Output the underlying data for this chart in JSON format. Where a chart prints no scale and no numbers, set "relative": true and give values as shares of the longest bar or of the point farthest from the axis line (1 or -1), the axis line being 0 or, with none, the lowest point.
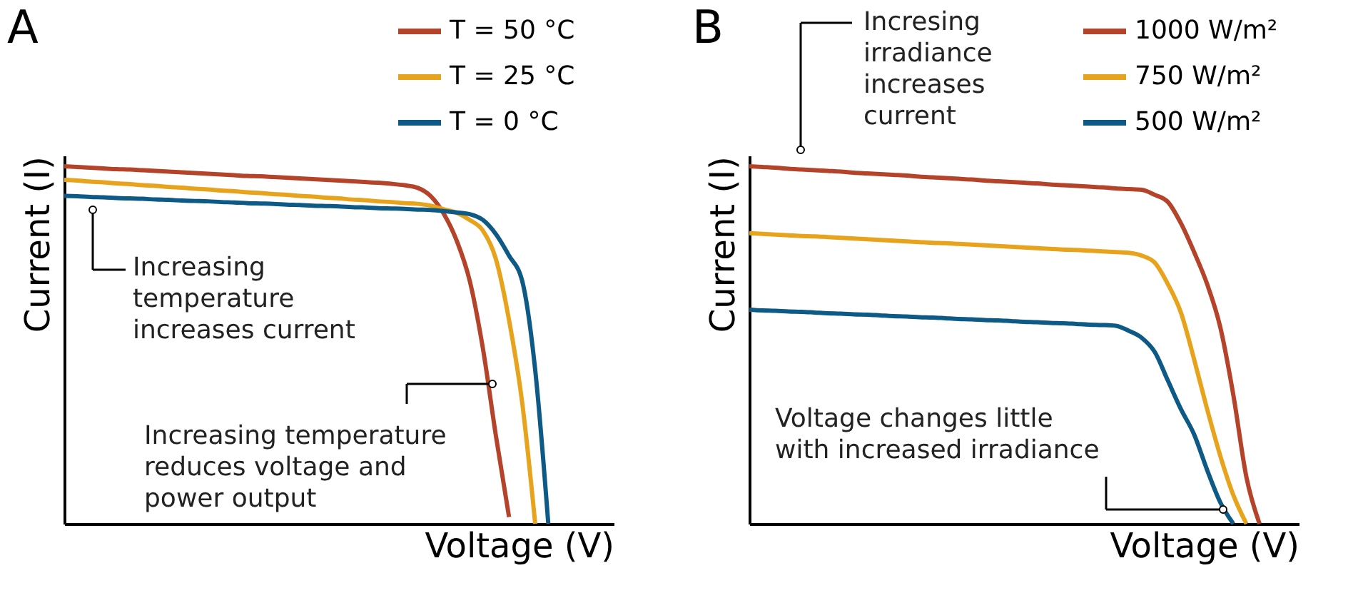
{
  "chart_data": [
    {
      "type": "line",
      "title": "A",
      "xlabel": "Voltage (V)",
      "ylabel": "Current (I)",
      "relative": true,
      "legend": "top right",
      "categories": [
        null,
        null,
        null,
        null,
        null,
        null,
        null,
        null,
        null,
        null,
        null,
        null,
        null,
        null,
        null,
        null,
        null,
        null,
        null,
        null,
        null,
        null,
        null,
        null,
        null,
        null,
        null,
        null,
        null,
        null,
        null,
        null,
        null,
        null,
        null,
        null,
        null,
        null,
        null,
        null,
        null,
        null,
        null
      ],
      "series": [
        {
          "name": "T = 50 °C",
          "color": "#b5432a",
          "values": [
            1.0,
            0.998,
            0.996,
            0.994,
            0.992,
            0.991,
            0.989,
            0.987,
            0.985,
            0.983,
            0.981,
            0.979,
            0.977,
            0.975,
            0.973,
            0.972,
            0.97,
            0.968,
            0.966,
            0.964,
            0.962,
            0.96,
            0.958,
            0.956,
            0.954,
            0.951,
            0.947,
            0.94,
            0.917,
            0.868,
            0.792,
            0.679,
            0.491,
            0.245,
            0.019,
            null,
            null,
            null,
            null,
            null,
            null,
            null,
            null
          ]
        },
        {
          "name": "T = 25 °C",
          "color": "#e8a31c",
          "values": [
            0.962,
            0.96,
            0.957,
            0.955,
            0.952,
            0.95,
            0.947,
            0.945,
            0.942,
            0.94,
            0.937,
            0.935,
            0.932,
            0.93,
            0.927,
            0.925,
            0.922,
            0.92,
            0.917,
            0.915,
            0.912,
            0.91,
            0.907,
            0.905,
            0.902,
            0.9,
            0.897,
            0.895,
            0.89,
            0.88,
            0.87,
            0.85,
            0.82,
            0.74,
            0.57,
            0.34,
            0.0,
            null,
            null,
            null,
            null,
            null,
            null
          ]
        },
        {
          "name": "T = 0 °C",
          "color": "#0e5a86",
          "values": [
            0.917,
            0.916,
            0.914,
            0.913,
            0.911,
            0.91,
            0.909,
            0.907,
            0.906,
            0.904,
            0.903,
            0.902,
            0.9,
            0.899,
            0.897,
            0.896,
            0.895,
            0.893,
            0.892,
            0.89,
            0.889,
            0.888,
            0.886,
            0.885,
            0.883,
            0.882,
            0.881,
            0.879,
            0.878,
            0.875,
            0.871,
            0.866,
            0.85,
            0.81,
            0.75,
            0.68,
            0.43,
            0.0,
            null,
            null,
            null,
            null,
            null
          ]
        }
      ],
      "annotations": [
        "Increasing\ntemperature\nincreases current",
        "Increasing temperature\nreduces voltage and\npower output"
      ]
    },
    {
      "type": "line",
      "title": "B",
      "xlabel": "Voltage (V)",
      "ylabel": "Current (I)",
      "relative": true,
      "legend": "top right",
      "categories": [
        null,
        null,
        null,
        null,
        null,
        null,
        null,
        null,
        null,
        null,
        null,
        null,
        null,
        null,
        null,
        null,
        null,
        null,
        null,
        null,
        null,
        null,
        null,
        null,
        null,
        null,
        null,
        null,
        null,
        null,
        null,
        null,
        null,
        null,
        null,
        null,
        null,
        null,
        null,
        null,
        null,
        null,
        null
      ],
      "series": [
        {
          "name": "1000 W/m²",
          "color": "#b5432a",
          "values": [
            1.0,
            0.998,
            0.996,
            0.993,
            0.991,
            0.989,
            0.987,
            0.985,
            0.982,
            0.98,
            0.978,
            0.976,
            0.974,
            0.971,
            0.969,
            0.967,
            0.965,
            0.963,
            0.96,
            0.958,
            0.956,
            0.954,
            0.952,
            0.949,
            0.947,
            0.945,
            0.943,
            0.941,
            0.938,
            0.936,
            0.934,
            0.92,
            0.9,
            0.84,
            0.76,
            0.67,
            0.55,
            0.36,
            0.13,
            0.0,
            null,
            null,
            null
          ]
        },
        {
          "name": "750 W/m²",
          "color": "#e8a31c",
          "values": [
            0.813,
            0.811,
            0.809,
            0.807,
            0.805,
            0.804,
            0.802,
            0.8,
            0.798,
            0.796,
            0.794,
            0.792,
            0.79,
            0.788,
            0.786,
            0.785,
            0.783,
            0.781,
            0.779,
            0.777,
            0.775,
            0.773,
            0.771,
            0.769,
            0.767,
            0.766,
            0.764,
            0.762,
            0.76,
            0.758,
            0.75,
            0.73,
            0.67,
            0.59,
            0.46,
            0.32,
            0.19,
            0.08,
            0.0,
            null,
            null,
            null,
            null
          ]
        },
        {
          "name": "500 W/m²",
          "color": "#0e5a86",
          "values": [
            0.599,
            0.597,
            0.596,
            0.594,
            0.593,
            0.591,
            0.589,
            0.588,
            0.586,
            0.585,
            0.583,
            0.581,
            0.58,
            0.578,
            0.577,
            0.575,
            0.573,
            0.572,
            0.57,
            0.569,
            0.567,
            0.565,
            0.564,
            0.562,
            0.561,
            0.559,
            0.557,
            0.556,
            0.554,
            0.54,
            0.52,
            0.48,
            0.4,
            0.32,
            0.25,
            0.15,
            0.06,
            0.0,
            null,
            null,
            null,
            null,
            null
          ]
        }
      ],
      "annotations": [
        "Incresing\nirradiance\nincreases\ncurrent",
        "Voltage changes little\nwith increased irradiance"
      ]
    }
  ]
}
